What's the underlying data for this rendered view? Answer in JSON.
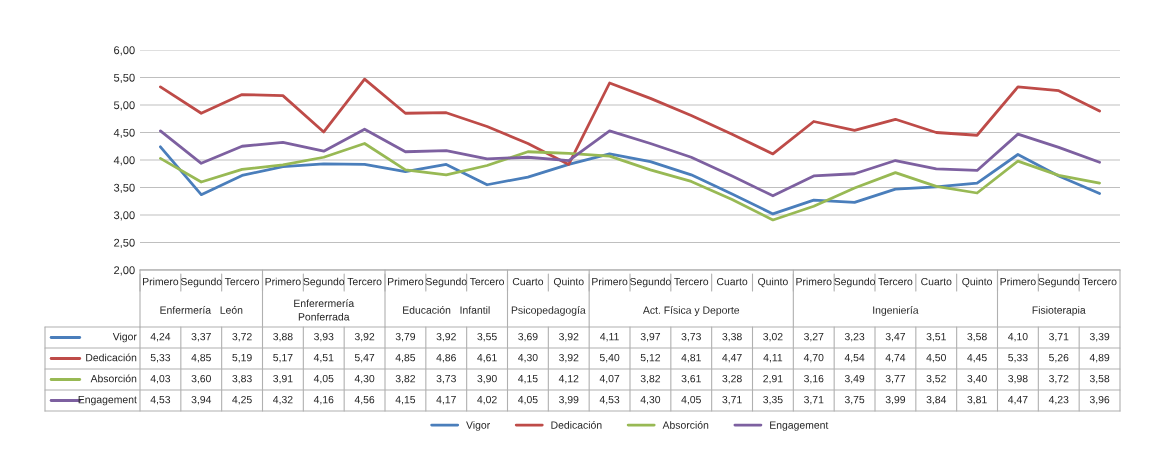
{
  "chart_data": {
    "type": "line",
    "categories": [
      "Primero",
      "Segundo",
      "Tercero",
      "Primero",
      "Segundo",
      "Tercero",
      "Primero",
      "Segundo",
      "Tercero",
      "Cuarto",
      "Quinto",
      "Primero",
      "Segundo",
      "Tercero",
      "Cuarto",
      "Quinto",
      "Primero",
      "Segundo",
      "Tercero",
      "Cuarto",
      "Quinto",
      "Primero",
      "Segundo",
      "Tercero"
    ],
    "annotations": [
      "Enfermería   León",
      "Enferermería\nPonferrada",
      "Educación   Infantil",
      "Psicopedagogía",
      "Act. Física y Deporte",
      "Ingeniería",
      "Fisioterapia"
    ],
    "series": [
      {
        "name": "Vigor",
        "color": "#4a7ebb",
        "values": [
          4.24,
          3.37,
          3.72,
          3.88,
          3.93,
          3.92,
          3.79,
          3.92,
          3.55,
          3.69,
          3.92,
          4.11,
          3.97,
          3.73,
          3.38,
          3.02,
          3.27,
          3.23,
          3.47,
          3.51,
          3.58,
          4.1,
          3.71,
          3.39
        ],
        "value_labels": [
          "4,24",
          "3,37",
          "3,72",
          "3,88",
          "3,93",
          "3,92",
          "3,79",
          "3,92",
          "3,55",
          "3,69",
          "3,92",
          "4,11",
          "3,97",
          "3,73",
          "3,38",
          "3,02",
          "3,27",
          "3,23",
          "3,47",
          "3,51",
          "3,58",
          "4,10",
          "3,71",
          "3,39"
        ]
      },
      {
        "name": "Dedicación",
        "color": "#be4b48",
        "values": [
          5.33,
          4.85,
          5.19,
          5.17,
          4.51,
          5.47,
          4.85,
          4.86,
          4.61,
          4.3,
          3.92,
          5.4,
          5.12,
          4.81,
          4.47,
          4.11,
          4.7,
          4.54,
          4.74,
          4.5,
          4.45,
          5.33,
          5.26,
          4.89
        ],
        "value_labels": [
          "5,33",
          "4,85",
          "5,19",
          "5,17",
          "4,51",
          "5,47",
          "4,85",
          "4,86",
          "4,61",
          "4,30",
          "3,92",
          "5,40",
          "5,12",
          "4,81",
          "4,47",
          "4,11",
          "4,70",
          "4,54",
          "4,74",
          "4,50",
          "4,45",
          "5,33",
          "5,26",
          "4,89"
        ]
      },
      {
        "name": "Absorción",
        "color": "#98b954",
        "values": [
          4.03,
          3.6,
          3.83,
          3.91,
          4.05,
          4.3,
          3.82,
          3.73,
          3.9,
          4.15,
          4.12,
          4.07,
          3.82,
          3.61,
          3.28,
          2.91,
          3.16,
          3.49,
          3.77,
          3.52,
          3.4,
          3.98,
          3.72,
          3.58
        ],
        "value_labels": [
          "4,03",
          "3,60",
          "3,83",
          "3,91",
          "4,05",
          "4,30",
          "3,82",
          "3,73",
          "3,90",
          "4,15",
          "4,12",
          "4,07",
          "3,82",
          "3,61",
          "3,28",
          "2,91",
          "3,16",
          "3,49",
          "3,77",
          "3,52",
          "3,40",
          "3,98",
          "3,72",
          "3,58"
        ]
      },
      {
        "name": "Engagement",
        "color": "#7d60a0",
        "values": [
          4.53,
          3.94,
          4.25,
          4.32,
          4.16,
          4.56,
          4.15,
          4.17,
          4.02,
          4.05,
          3.99,
          4.53,
          4.3,
          4.05,
          3.71,
          3.35,
          3.71,
          3.75,
          3.99,
          3.84,
          3.81,
          4.47,
          4.23,
          3.96
        ],
        "value_labels": [
          "4,53",
          "3,94",
          "4,25",
          "4,32",
          "4,16",
          "4,56",
          "4,15",
          "4,17",
          "4,02",
          "4,05",
          "3,99",
          "4,53",
          "4,30",
          "4,05",
          "3,71",
          "3,35",
          "3,71",
          "3,75",
          "3,99",
          "3,84",
          "3,81",
          "4,47",
          "4,23",
          "3,96"
        ]
      }
    ],
    "ylim": [
      2,
      6
    ],
    "yticks": [
      {
        "value": 2,
        "label": "2,00"
      },
      {
        "value": 2.5,
        "label": "2,50"
      },
      {
        "value": 3,
        "label": "3,00"
      },
      {
        "value": 3.5,
        "label": "3,50"
      },
      {
        "value": 4,
        "label": "4,00"
      },
      {
        "value": 4.5,
        "label": "4,50"
      },
      {
        "value": 5,
        "label": "5,00"
      },
      {
        "value": 5.5,
        "label": "5,50"
      },
      {
        "value": 6,
        "label": "6,00"
      }
    ],
    "grid": "y",
    "legend": "bottom",
    "marker": "none",
    "line_style": "solid"
  }
}
